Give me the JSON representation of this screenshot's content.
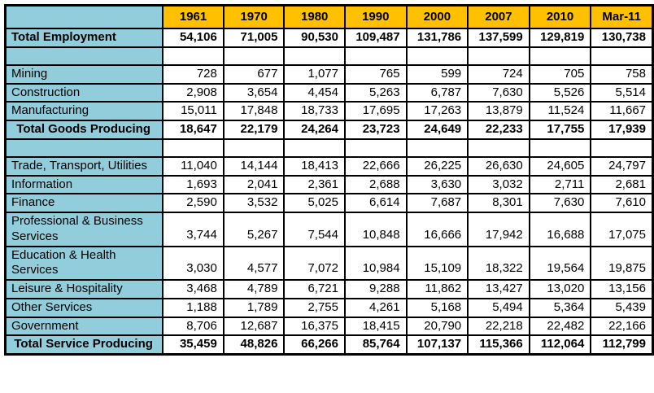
{
  "chart_data": {
    "type": "table",
    "columns": [
      "",
      "1961",
      "1970",
      "1980",
      "1990",
      "2000",
      "2007",
      "2010",
      "Mar-11"
    ],
    "rows": [
      {
        "label": "Total Employment",
        "style": "bold",
        "values": [
          "54,106",
          "71,005",
          "90,530",
          "109,487",
          "131,786",
          "137,599",
          "129,819",
          "130,738"
        ]
      },
      {
        "label": "",
        "style": "spacer",
        "values": [
          "",
          "",
          "",
          "",
          "",
          "",
          "",
          ""
        ]
      },
      {
        "label": "Mining",
        "style": "normal",
        "values": [
          "728",
          "677",
          "1,077",
          "765",
          "599",
          "724",
          "705",
          "758"
        ]
      },
      {
        "label": "Construction",
        "style": "normal",
        "values": [
          "2,908",
          "3,654",
          "4,454",
          "5,263",
          "6,787",
          "7,630",
          "5,526",
          "5,514"
        ]
      },
      {
        "label": "Manufacturing",
        "style": "normal",
        "values": [
          "15,011",
          "17,848",
          "18,733",
          "17,695",
          "17,263",
          "13,879",
          "11,524",
          "11,667"
        ]
      },
      {
        "label": "Total Goods Producing",
        "style": "total",
        "values": [
          "18,647",
          "22,179",
          "24,264",
          "23,723",
          "24,649",
          "22,233",
          "17,755",
          "17,939"
        ]
      },
      {
        "label": "",
        "style": "spacer",
        "values": [
          "",
          "",
          "",
          "",
          "",
          "",
          "",
          ""
        ]
      },
      {
        "label": "Trade, Transport, Utilities",
        "style": "normal",
        "values": [
          "11,040",
          "14,144",
          "18,413",
          "22,666",
          "26,225",
          "26,630",
          "24,605",
          "24,797"
        ]
      },
      {
        "label": "Information",
        "style": "normal",
        "values": [
          "1,693",
          "2,041",
          "2,361",
          "2,688",
          "3,630",
          "3,032",
          "2,711",
          "2,681"
        ]
      },
      {
        "label": "Finance",
        "style": "normal",
        "values": [
          "2,590",
          "3,532",
          "5,025",
          "6,614",
          "7,687",
          "8,301",
          "7,630",
          "7,610"
        ]
      },
      {
        "label": "Professional & Business Services",
        "style": "tall",
        "values": [
          "3,744",
          "5,267",
          "7,544",
          "10,848",
          "16,666",
          "17,942",
          "16,688",
          "17,075"
        ]
      },
      {
        "label": "Education & Health Services",
        "style": "tall",
        "values": [
          "3,030",
          "4,577",
          "7,072",
          "10,984",
          "15,109",
          "18,322",
          "19,564",
          "19,875"
        ]
      },
      {
        "label": "Leisure & Hospitality",
        "style": "normal",
        "values": [
          "3,468",
          "4,789",
          "6,721",
          "9,288",
          "11,862",
          "13,427",
          "13,020",
          "13,156"
        ]
      },
      {
        "label": "Other Services",
        "style": "normal",
        "values": [
          "1,188",
          "1,789",
          "2,755",
          "4,261",
          "5,168",
          "5,494",
          "5,364",
          "5,439"
        ]
      },
      {
        "label": "Government",
        "style": "normal",
        "values": [
          "8,706",
          "12,687",
          "16,375",
          "18,415",
          "20,790",
          "22,218",
          "22,482",
          "22,166"
        ]
      },
      {
        "label": "Total Service Producing",
        "style": "total",
        "values": [
          "35,459",
          "48,826",
          "66,266",
          "85,764",
          "107,137",
          "115,366",
          "112,064",
          "112,799"
        ]
      }
    ]
  },
  "colors": {
    "header_bg": "#FFC000",
    "label_bg": "#92CDDC",
    "border": "#000000",
    "text": "#000000",
    "cell_bg": "#FFFFFF"
  }
}
